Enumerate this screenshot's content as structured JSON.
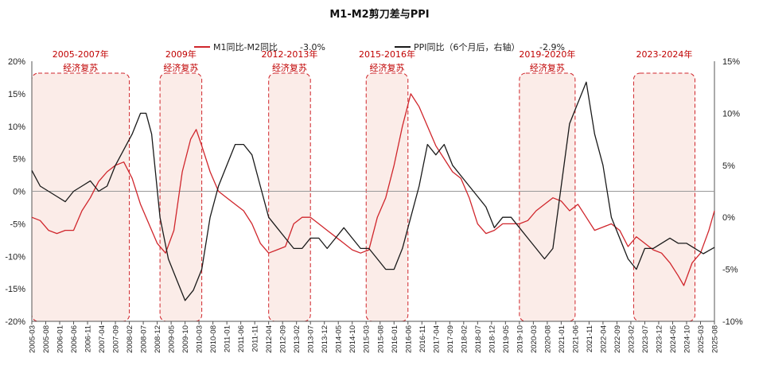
{
  "chart_data": {
    "type": "line",
    "title": "M1-M2剪刀差与PPI",
    "x_range": [
      "2005-03",
      "2025-08"
    ],
    "ylim_left": [
      -20,
      20
    ],
    "ylim_right": [
      -10,
      15
    ],
    "left_ticks": [
      "20%",
      "15%",
      "10%",
      "5%",
      "0%",
      "-5%",
      "-10%",
      "-15%",
      "-20%"
    ],
    "right_ticks": [
      "15%",
      "10%",
      "5%",
      "0%",
      "-5%",
      "-10%"
    ],
    "x_tick_labels": [
      "2005-03",
      "2005-08",
      "2006-01",
      "2006-06",
      "2006-11",
      "2007-04",
      "2007-09",
      "2008-02",
      "2008-07",
      "2008-12",
      "2009-05",
      "2009-10",
      "2010-03",
      "2010-08",
      "2011-01",
      "2011-06",
      "2011-11",
      "2012-04",
      "2012-09",
      "2013-02",
      "2013-07",
      "2013-12",
      "2014-05",
      "2014-10",
      "2015-03",
      "2015-08",
      "2016-01",
      "2016-06",
      "2016-11",
      "2017-04",
      "2017-09",
      "2018-02",
      "2018-07",
      "2018-12",
      "2019-05",
      "2019-10",
      "2020-03",
      "2020-08",
      "2021-01",
      "2021-06",
      "2021-11",
      "2022-04",
      "2022-09",
      "2023-02",
      "2023-07",
      "2023-12",
      "2024-05",
      "2024-10",
      "2025-03",
      "2025-08"
    ],
    "legend": {
      "series1_label": "M1同比-M2同比",
      "series1_last": "-3.0%",
      "series2_label": "PPI同比（6个月后，右轴）",
      "series2_last": "-2.9%"
    },
    "colors": {
      "series1": "#d0262c",
      "series2": "#1a1a1a",
      "box_border": "#d0262c",
      "box_fill": "#fbece8"
    },
    "highlights": [
      {
        "period": "2005-2007年",
        "label": "经济复苏",
        "start": "2005-03",
        "end": "2008-02"
      },
      {
        "period": "2009年",
        "label": "经济复苏",
        "start": "2009-01",
        "end": "2010-04"
      },
      {
        "period": "2012-2013年",
        "label": "经济复苏",
        "start": "2012-04",
        "end": "2013-07"
      },
      {
        "period": "2015-2016年",
        "label": "经济复苏",
        "start": "2015-03",
        "end": "2016-06"
      },
      {
        "period": "2019-2020年",
        "label": "经济复苏",
        "start": "2019-10",
        "end": "2021-06"
      },
      {
        "period": "2023-2024年",
        "label": "",
        "start": "2023-03",
        "end": "2025-01"
      }
    ],
    "series": [
      {
        "name": "M1同比-M2同比",
        "axis": "left",
        "points": [
          [
            "2005-03",
            -4
          ],
          [
            "2005-06",
            -4.5
          ],
          [
            "2005-09",
            -6
          ],
          [
            "2005-12",
            -6.5
          ],
          [
            "2006-03",
            -6
          ],
          [
            "2006-06",
            -6
          ],
          [
            "2006-09",
            -3
          ],
          [
            "2006-12",
            -1
          ],
          [
            "2007-03",
            1.5
          ],
          [
            "2007-06",
            3
          ],
          [
            "2007-09",
            4
          ],
          [
            "2007-12",
            4.5
          ],
          [
            "2008-03",
            2
          ],
          [
            "2008-06",
            -2
          ],
          [
            "2008-09",
            -5
          ],
          [
            "2008-12",
            -8
          ],
          [
            "2009-03",
            -9.5
          ],
          [
            "2009-06",
            -6
          ],
          [
            "2009-09",
            3
          ],
          [
            "2009-12",
            8
          ],
          [
            "2010-02",
            9.5
          ],
          [
            "2010-04",
            7
          ],
          [
            "2010-07",
            3
          ],
          [
            "2010-10",
            0
          ],
          [
            "2011-01",
            -1
          ],
          [
            "2011-04",
            -2
          ],
          [
            "2011-07",
            -3
          ],
          [
            "2011-10",
            -5
          ],
          [
            "2012-01",
            -8
          ],
          [
            "2012-04",
            -9.5
          ],
          [
            "2012-07",
            -9
          ],
          [
            "2012-10",
            -8.5
          ],
          [
            "2013-01",
            -5
          ],
          [
            "2013-04",
            -4
          ],
          [
            "2013-07",
            -4
          ],
          [
            "2013-10",
            -5
          ],
          [
            "2014-01",
            -6
          ],
          [
            "2014-04",
            -7
          ],
          [
            "2014-07",
            -8
          ],
          [
            "2014-10",
            -9
          ],
          [
            "2015-01",
            -9.5
          ],
          [
            "2015-04",
            -9
          ],
          [
            "2015-07",
            -4
          ],
          [
            "2015-10",
            -1
          ],
          [
            "2016-01",
            4
          ],
          [
            "2016-04",
            10
          ],
          [
            "2016-07",
            15
          ],
          [
            "2016-10",
            13
          ],
          [
            "2017-01",
            10
          ],
          [
            "2017-04",
            7
          ],
          [
            "2017-07",
            5
          ],
          [
            "2017-10",
            3
          ],
          [
            "2018-01",
            2
          ],
          [
            "2018-04",
            -1
          ],
          [
            "2018-07",
            -5
          ],
          [
            "2018-10",
            -6.5
          ],
          [
            "2019-01",
            -6
          ],
          [
            "2019-04",
            -5
          ],
          [
            "2019-07",
            -5
          ],
          [
            "2019-10",
            -5
          ],
          [
            "2020-01",
            -4.5
          ],
          [
            "2020-04",
            -3
          ],
          [
            "2020-07",
            -2
          ],
          [
            "2020-10",
            -1
          ],
          [
            "2021-01",
            -1.5
          ],
          [
            "2021-04",
            -3
          ],
          [
            "2021-07",
            -2
          ],
          [
            "2021-10",
            -4
          ],
          [
            "2022-01",
            -6
          ],
          [
            "2022-04",
            -5.5
          ],
          [
            "2022-07",
            -5
          ],
          [
            "2022-10",
            -6
          ],
          [
            "2023-01",
            -8.5
          ],
          [
            "2023-04",
            -7
          ],
          [
            "2023-07",
            -8
          ],
          [
            "2023-10",
            -9
          ],
          [
            "2024-01",
            -9.5
          ],
          [
            "2024-04",
            -11
          ],
          [
            "2024-07",
            -13
          ],
          [
            "2024-09",
            -14.5
          ],
          [
            "2024-12",
            -11
          ],
          [
            "2025-03",
            -9.5
          ],
          [
            "2025-06",
            -6
          ],
          [
            "2025-08",
            -3
          ]
        ]
      },
      {
        "name": "PPI同比（6个月后，右轴）",
        "axis": "right",
        "points": [
          [
            "2005-03",
            4.5
          ],
          [
            "2005-06",
            3
          ],
          [
            "2005-09",
            2.5
          ],
          [
            "2005-12",
            2
          ],
          [
            "2006-03",
            1.5
          ],
          [
            "2006-06",
            2.5
          ],
          [
            "2006-09",
            3
          ],
          [
            "2006-12",
            3.5
          ],
          [
            "2007-03",
            2.5
          ],
          [
            "2007-06",
            3
          ],
          [
            "2007-09",
            5
          ],
          [
            "2007-12",
            6.5
          ],
          [
            "2008-03",
            8
          ],
          [
            "2008-06",
            10
          ],
          [
            "2008-08",
            10
          ],
          [
            "2008-10",
            8
          ],
          [
            "2009-01",
            0
          ],
          [
            "2009-04",
            -4
          ],
          [
            "2009-07",
            -6
          ],
          [
            "2009-10",
            -8
          ],
          [
            "2010-01",
            -7
          ],
          [
            "2010-04",
            -5
          ],
          [
            "2010-07",
            0
          ],
          [
            "2010-10",
            3
          ],
          [
            "2011-01",
            5
          ],
          [
            "2011-04",
            7
          ],
          [
            "2011-07",
            7
          ],
          [
            "2011-10",
            6
          ],
          [
            "2012-01",
            3
          ],
          [
            "2012-04",
            0
          ],
          [
            "2012-07",
            -1
          ],
          [
            "2012-10",
            -2
          ],
          [
            "2013-01",
            -3
          ],
          [
            "2013-04",
            -3
          ],
          [
            "2013-07",
            -2
          ],
          [
            "2013-10",
            -2
          ],
          [
            "2014-01",
            -3
          ],
          [
            "2014-04",
            -2
          ],
          [
            "2014-07",
            -1
          ],
          [
            "2014-10",
            -2
          ],
          [
            "2015-01",
            -3
          ],
          [
            "2015-04",
            -3
          ],
          [
            "2015-07",
            -4
          ],
          [
            "2015-10",
            -5
          ],
          [
            "2016-01",
            -5
          ],
          [
            "2016-04",
            -3
          ],
          [
            "2016-07",
            0
          ],
          [
            "2016-10",
            3
          ],
          [
            "2017-01",
            7
          ],
          [
            "2017-04",
            6
          ],
          [
            "2017-07",
            7
          ],
          [
            "2017-10",
            5
          ],
          [
            "2018-01",
            4
          ],
          [
            "2018-04",
            3
          ],
          [
            "2018-07",
            2
          ],
          [
            "2018-10",
            1
          ],
          [
            "2019-01",
            -1
          ],
          [
            "2019-04",
            0
          ],
          [
            "2019-07",
            0
          ],
          [
            "2019-10",
            -1
          ],
          [
            "2020-01",
            -2
          ],
          [
            "2020-04",
            -3
          ],
          [
            "2020-07",
            -4
          ],
          [
            "2020-10",
            -3
          ],
          [
            "2021-01",
            3
          ],
          [
            "2021-04",
            9
          ],
          [
            "2021-07",
            11
          ],
          [
            "2021-10",
            13
          ],
          [
            "2022-01",
            8
          ],
          [
            "2022-04",
            5
          ],
          [
            "2022-07",
            0
          ],
          [
            "2022-10",
            -2
          ],
          [
            "2023-01",
            -4
          ],
          [
            "2023-04",
            -5
          ],
          [
            "2023-07",
            -3
          ],
          [
            "2023-10",
            -3
          ],
          [
            "2024-01",
            -2.5
          ],
          [
            "2024-04",
            -2
          ],
          [
            "2024-07",
            -2.5
          ],
          [
            "2024-10",
            -2.5
          ],
          [
            "2025-01",
            -3
          ],
          [
            "2025-04",
            -3.5
          ],
          [
            "2025-08",
            -2.9
          ]
        ]
      }
    ]
  }
}
